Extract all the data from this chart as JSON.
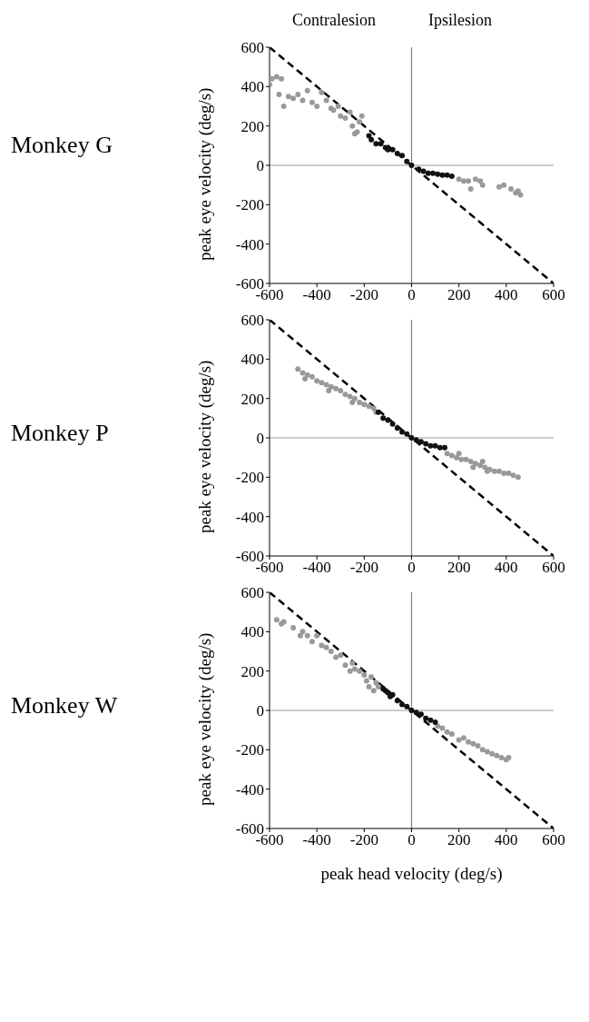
{
  "chart_data": [
    {
      "type": "scatter",
      "title": "Monkey G",
      "ylabel": "peak eye velocity (deg/s)",
      "annotations": [
        "Contralesion",
        "Ipsilesion"
      ],
      "xlim": [
        -600,
        600
      ],
      "ylim": [
        -600,
        600
      ],
      "xticks": [
        -600,
        -400,
        -200,
        0,
        200,
        400,
        600
      ],
      "yticks": [
        -600,
        -400,
        -200,
        0,
        200,
        400,
        600
      ],
      "marker": "circle",
      "ref_lines": [
        {
          "axis": "x",
          "value": 0,
          "color": "#808080"
        },
        {
          "axis": "y",
          "value": 0,
          "color": "#999999"
        }
      ],
      "series": [
        {
          "color": "#999999",
          "x": [
            -600,
            -590,
            -570,
            -550,
            -560,
            -540,
            -520,
            -500,
            -480,
            -460,
            -440,
            -420,
            -400,
            -380,
            -360,
            -340,
            -330,
            -310,
            -300,
            -280,
            -260,
            -250,
            -240,
            -230,
            -220,
            -210,
            200,
            220,
            240,
            250,
            270,
            290,
            300,
            370,
            390,
            420,
            440,
            460,
            450
          ],
          "values": [
            410,
            440,
            450,
            440,
            360,
            300,
            350,
            340,
            360,
            330,
            380,
            320,
            300,
            370,
            330,
            290,
            280,
            300,
            250,
            240,
            270,
            200,
            160,
            170,
            220,
            250,
            -70,
            -80,
            -80,
            -120,
            -70,
            -80,
            -100,
            -110,
            -100,
            -120,
            -140,
            -150,
            -130
          ]
        },
        {
          "color": "#111111",
          "x": [
            -180,
            -170,
            -150,
            -130,
            -110,
            -100,
            -80,
            -60,
            -40,
            -20,
            0,
            30,
            50,
            70,
            90,
            110,
            130,
            150,
            170
          ],
          "values": [
            150,
            130,
            110,
            110,
            90,
            80,
            80,
            60,
            50,
            20,
            0,
            -20,
            -30,
            -40,
            -40,
            -45,
            -50,
            -50,
            -55
          ]
        },
        {
          "type": "line",
          "color": "#000000",
          "line_style": "dashed",
          "marker": "none",
          "x": [
            -600,
            600
          ],
          "values": [
            600,
            -600
          ]
        }
      ]
    },
    {
      "type": "scatter",
      "title": "Monkey P",
      "ylabel": "peak eye velocity (deg/s)",
      "xlim": [
        -600,
        600
      ],
      "ylim": [
        -600,
        600
      ],
      "xticks": [
        -600,
        -400,
        -200,
        0,
        200,
        400,
        600
      ],
      "yticks": [
        -600,
        -400,
        -200,
        0,
        200,
        400,
        600
      ],
      "marker": "circle",
      "ref_lines": [
        {
          "axis": "x",
          "value": 0,
          "color": "#808080"
        },
        {
          "axis": "y",
          "value": 0,
          "color": "#999999"
        }
      ],
      "series": [
        {
          "color": "#999999",
          "x": [
            -480,
            -460,
            -440,
            -420,
            -400,
            -380,
            -360,
            -340,
            -320,
            -300,
            -280,
            -260,
            -240,
            -220,
            -200,
            -180,
            -160,
            -150,
            -450,
            -350,
            -250,
            150,
            170,
            190,
            210,
            230,
            250,
            270,
            290,
            310,
            330,
            350,
            370,
            390,
            410,
            430,
            450,
            200,
            260,
            300,
            320
          ],
          "values": [
            350,
            330,
            320,
            310,
            290,
            280,
            270,
            260,
            250,
            240,
            220,
            210,
            200,
            180,
            170,
            160,
            150,
            130,
            300,
            240,
            180,
            -80,
            -90,
            -100,
            -110,
            -110,
            -120,
            -130,
            -140,
            -150,
            -160,
            -170,
            -170,
            -180,
            -180,
            -190,
            -200,
            -80,
            -150,
            -120,
            -170
          ]
        },
        {
          "color": "#111111",
          "x": [
            -140,
            -120,
            -100,
            -80,
            -60,
            -40,
            -20,
            0,
            20,
            40,
            60,
            80,
            100,
            120,
            140
          ],
          "values": [
            130,
            100,
            90,
            70,
            50,
            30,
            20,
            0,
            -10,
            -20,
            -30,
            -40,
            -40,
            -50,
            -50
          ]
        },
        {
          "type": "line",
          "color": "#000000",
          "line_style": "dashed",
          "marker": "none",
          "x": [
            -600,
            600
          ],
          "values": [
            600,
            -600
          ]
        }
      ]
    },
    {
      "type": "scatter",
      "title": "Monkey W",
      "xlabel": "peak head velocity (deg/s)",
      "ylabel": "peak eye velocity (deg/s)",
      "xlim": [
        -600,
        600
      ],
      "ylim": [
        -600,
        600
      ],
      "xticks": [
        -600,
        -400,
        -200,
        0,
        200,
        400,
        600
      ],
      "yticks": [
        -600,
        -400,
        -200,
        0,
        200,
        400,
        600
      ],
      "marker": "circle",
      "ref_lines": [
        {
          "axis": "x",
          "value": 0,
          "color": "#808080"
        },
        {
          "axis": "y",
          "value": 0,
          "color": "#999999"
        }
      ],
      "series": [
        {
          "color": "#999999",
          "x": [
            -570,
            -550,
            -540,
            -500,
            -470,
            -460,
            -440,
            -420,
            -400,
            -380,
            -360,
            -340,
            -320,
            -300,
            -280,
            -260,
            -250,
            -240,
            -220,
            -200,
            -190,
            -180,
            -170,
            -160,
            -150,
            -140,
            110,
            130,
            150,
            170,
            200,
            220,
            240,
            260,
            280,
            300,
            320,
            340,
            360,
            380,
            400,
            410
          ],
          "values": [
            460,
            440,
            450,
            420,
            380,
            400,
            380,
            350,
            380,
            330,
            320,
            300,
            270,
            280,
            230,
            200,
            240,
            210,
            200,
            180,
            150,
            120,
            170,
            100,
            140,
            120,
            -80,
            -90,
            -110,
            -120,
            -150,
            -140,
            -160,
            -170,
            -180,
            -200,
            -210,
            -220,
            -230,
            -240,
            -250,
            -240
          ]
        },
        {
          "color": "#111111",
          "x": [
            -120,
            -110,
            -100,
            -90,
            -80,
            -60,
            -40,
            -20,
            0,
            20,
            40,
            60,
            80,
            100
          ],
          "values": [
            110,
            100,
            90,
            70,
            80,
            50,
            30,
            20,
            0,
            -10,
            -20,
            -40,
            -50,
            -60
          ]
        },
        {
          "type": "line",
          "color": "#000000",
          "line_style": "dashed",
          "marker": "none",
          "x": [
            -600,
            600
          ],
          "values": [
            600,
            -600
          ]
        }
      ]
    }
  ]
}
